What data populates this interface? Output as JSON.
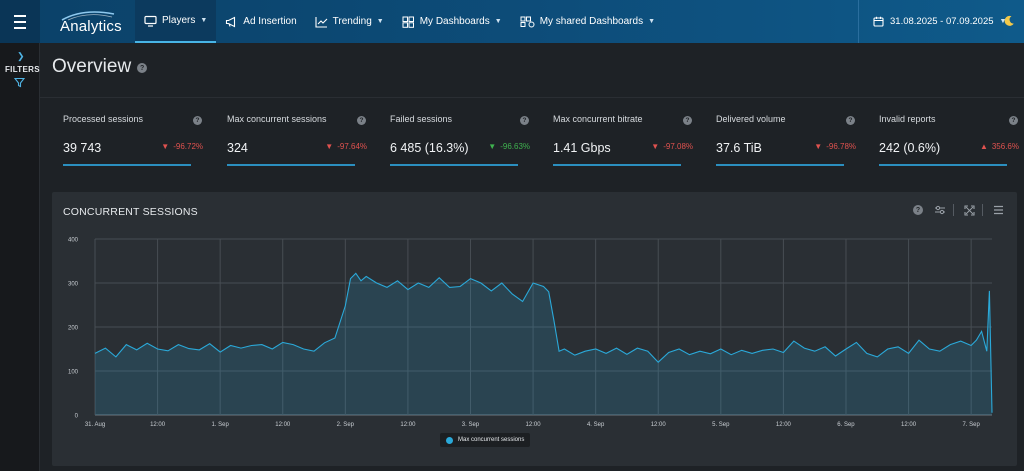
{
  "app": {
    "logo_text": "Analytics"
  },
  "nav": {
    "items": [
      {
        "label": "Players",
        "icon": "monitor-icon",
        "active": true
      },
      {
        "label": "Ad Insertion",
        "icon": "megaphone-icon",
        "active": false
      },
      {
        "label": "Trending",
        "icon": "trend-chart-icon",
        "active": false
      },
      {
        "label": "My Dashboards",
        "icon": "dashboard-grid-icon",
        "active": false
      },
      {
        "label": "My shared Dashboards",
        "icon": "shared-dashboard-icon",
        "active": false
      }
    ],
    "date_range": "31.08.2025 - 07.09.2025"
  },
  "filters": {
    "label": "FILTERS"
  },
  "overview": {
    "title": "Overview"
  },
  "kpis": [
    {
      "name": "Processed sessions",
      "value": "39 743",
      "delta": "-96.72%",
      "direction": "down",
      "delta_color": "#e0524f"
    },
    {
      "name": "Max concurrent sessions",
      "value": "324",
      "delta": "-97.64%",
      "direction": "down",
      "delta_color": "#e0524f"
    },
    {
      "name": "Failed sessions",
      "value": "6 485 (16.3%)",
      "delta": "-96.63%",
      "direction": "down",
      "delta_color": "#3fb24f"
    },
    {
      "name": "Max concurrent bitrate",
      "value": "1.41 Gbps",
      "delta": "-97.08%",
      "direction": "down",
      "delta_color": "#e0524f"
    },
    {
      "name": "Delivered volume",
      "value": "37.6 TiB",
      "delta": "-96.78%",
      "direction": "down",
      "delta_color": "#e0524f"
    },
    {
      "name": "Invalid reports",
      "value": "242 (0.6%)",
      "delta": "356.6%",
      "direction": "up",
      "delta_color": "#e0524f"
    }
  ],
  "chart_panel": {
    "title": "CONCURRENT SESSIONS"
  },
  "colors": {
    "accent": "#2aa9d9",
    "nav_bg": "#0d4d7a",
    "page_bg": "#1e2226",
    "panel_bg": "#2a2f34"
  },
  "chart_data": {
    "type": "area",
    "title": "CONCURRENT SESSIONS",
    "ylim": [
      0,
      400
    ],
    "y_ticks": [
      0,
      100,
      200,
      300,
      400
    ],
    "x_tick_labels": [
      "31. Aug",
      "12:00",
      "1. Sep",
      "12:00",
      "2. Sep",
      "12:00",
      "3. Sep",
      "12:00",
      "4. Sep",
      "12:00",
      "5. Sep",
      "12:00",
      "6. Sep",
      "12:00",
      "7. Sep"
    ],
    "x_hours_range": [
      0,
      172
    ],
    "grid": true,
    "legend": "bottom-center",
    "series": [
      {
        "name": "Max concurrent sessions",
        "color": "#2aa9d9",
        "points": [
          [
            0,
            140
          ],
          [
            2,
            152
          ],
          [
            4,
            132
          ],
          [
            6,
            160
          ],
          [
            8,
            148
          ],
          [
            10,
            163
          ],
          [
            12,
            150
          ],
          [
            14,
            146
          ],
          [
            16,
            160
          ],
          [
            18,
            151
          ],
          [
            20,
            148
          ],
          [
            22,
            162
          ],
          [
            24,
            143
          ],
          [
            26,
            158
          ],
          [
            28,
            152
          ],
          [
            30,
            158
          ],
          [
            32,
            160
          ],
          [
            34,
            150
          ],
          [
            36,
            165
          ],
          [
            38,
            160
          ],
          [
            40,
            150
          ],
          [
            42,
            145
          ],
          [
            44,
            164
          ],
          [
            46,
            175
          ],
          [
            48,
            248
          ],
          [
            49,
            310
          ],
          [
            50,
            322
          ],
          [
            51,
            305
          ],
          [
            52,
            315
          ],
          [
            54,
            300
          ],
          [
            56,
            290
          ],
          [
            58,
            305
          ],
          [
            60,
            285
          ],
          [
            62,
            300
          ],
          [
            64,
            290
          ],
          [
            66,
            312
          ],
          [
            68,
            290
          ],
          [
            70,
            292
          ],
          [
            72,
            310
          ],
          [
            74,
            300
          ],
          [
            76,
            282
          ],
          [
            78,
            300
          ],
          [
            80,
            275
          ],
          [
            82,
            258
          ],
          [
            84,
            300
          ],
          [
            86,
            292
          ],
          [
            87,
            280
          ],
          [
            88,
            215
          ],
          [
            89,
            145
          ],
          [
            90,
            150
          ],
          [
            92,
            136
          ],
          [
            94,
            145
          ],
          [
            96,
            150
          ],
          [
            98,
            140
          ],
          [
            100,
            152
          ],
          [
            102,
            138
          ],
          [
            104,
            152
          ],
          [
            106,
            145
          ],
          [
            108,
            120
          ],
          [
            110,
            142
          ],
          [
            112,
            150
          ],
          [
            114,
            137
          ],
          [
            116,
            145
          ],
          [
            118,
            139
          ],
          [
            120,
            150
          ],
          [
            122,
            137
          ],
          [
            124,
            147
          ],
          [
            126,
            140
          ],
          [
            128,
            147
          ],
          [
            130,
            150
          ],
          [
            132,
            142
          ],
          [
            134,
            168
          ],
          [
            136,
            152
          ],
          [
            138,
            145
          ],
          [
            140,
            155
          ],
          [
            142,
            134
          ],
          [
            144,
            150
          ],
          [
            146,
            165
          ],
          [
            148,
            140
          ],
          [
            150,
            132
          ],
          [
            152,
            150
          ],
          [
            154,
            155
          ],
          [
            156,
            140
          ],
          [
            158,
            170
          ],
          [
            160,
            150
          ],
          [
            162,
            145
          ],
          [
            164,
            160
          ],
          [
            166,
            168
          ],
          [
            168,
            158
          ],
          [
            169,
            170
          ],
          [
            170,
            190
          ],
          [
            171,
            145
          ],
          [
            171.5,
            282
          ],
          [
            172,
            5
          ]
        ]
      }
    ]
  }
}
